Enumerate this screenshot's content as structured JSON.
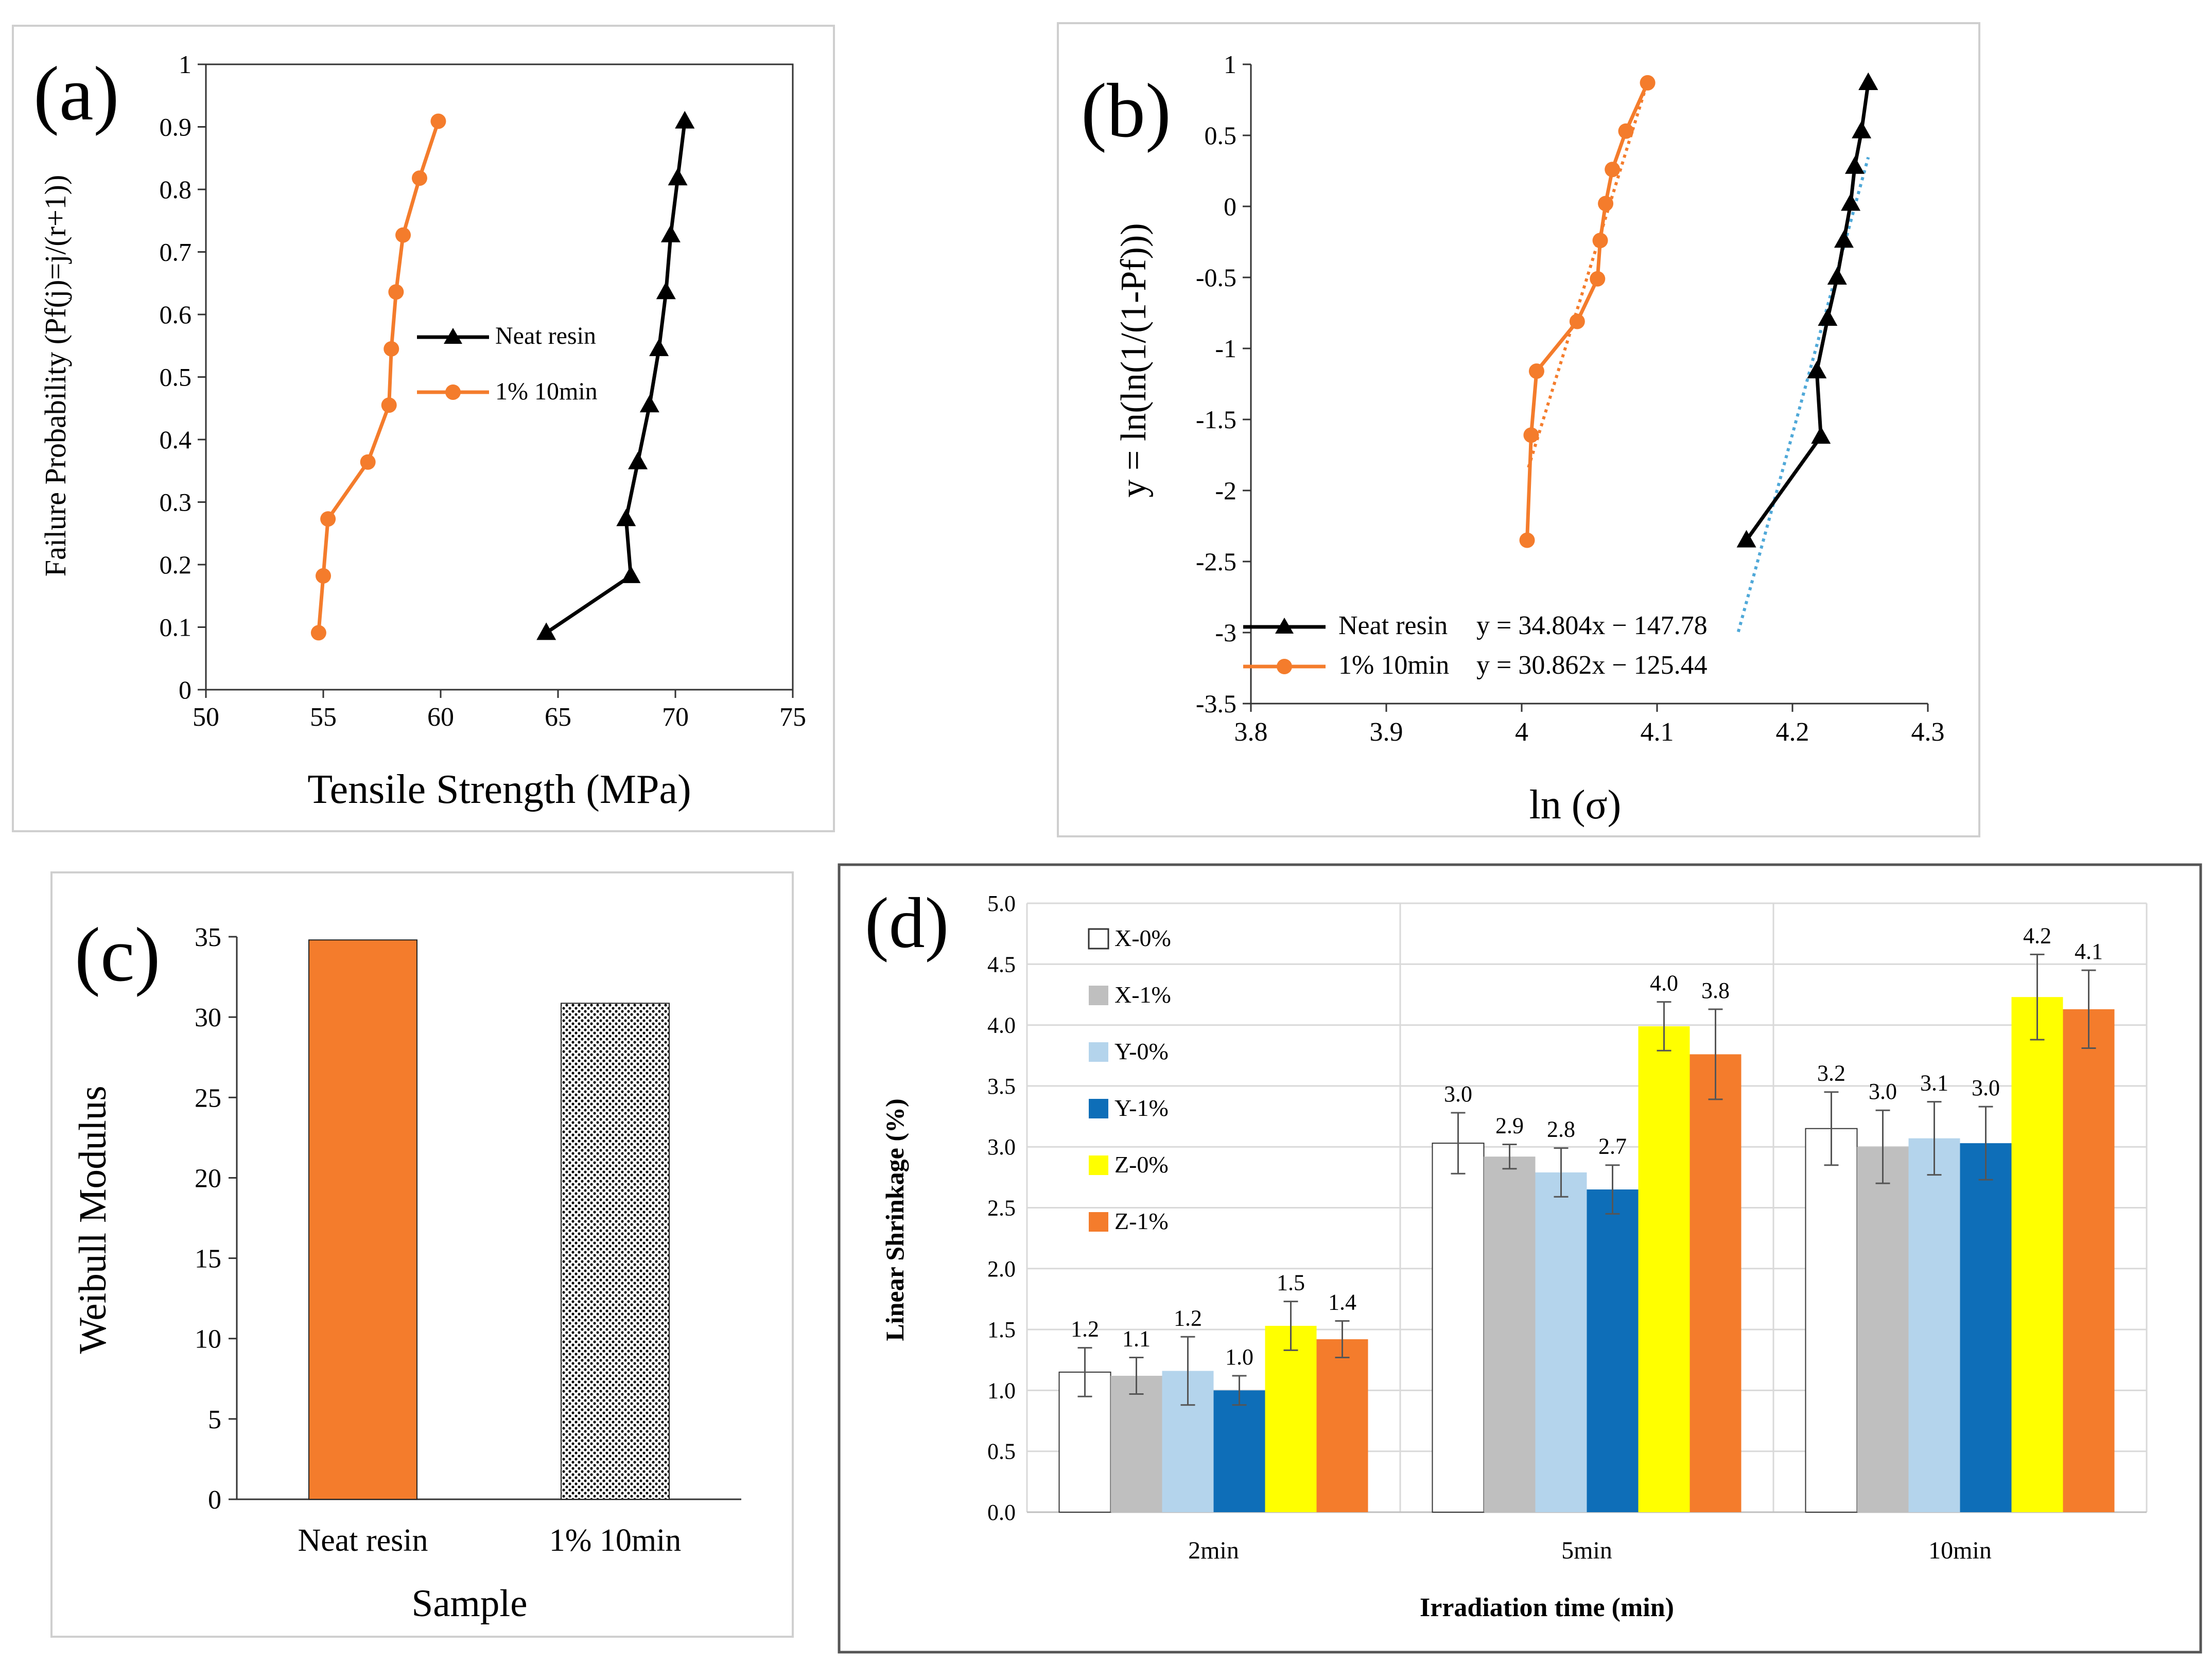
{
  "chart_data": [
    {
      "panel": "a",
      "panel_label": "(a)",
      "type": "line",
      "xlabel": "Tensile Strength (MPa)",
      "ylabel": "Failure  Probability   (Pf(j)=j/(r+1))",
      "xlim": [
        50,
        75
      ],
      "ylim": [
        0,
        1
      ],
      "xticks": [
        "50",
        "55",
        "60",
        "65",
        "70",
        "75"
      ],
      "yticks": [
        "0",
        "0.1",
        "0.2",
        "0.3",
        "0.4",
        "0.5",
        "0.6",
        "0.7",
        "0.8",
        "0.9",
        "1"
      ],
      "legend_position": "center",
      "series": [
        {
          "name": "Neat resin",
          "color": "#000000",
          "marker": "triangle",
          "x": [
            64.5,
            68.1,
            67.9,
            68.4,
            68.9,
            69.3,
            69.6,
            69.8,
            70.1,
            70.4,
            70.4
          ],
          "y": [
            0.091,
            0.182,
            0.273,
            0.364,
            0.455,
            0.545,
            0.636,
            0.727,
            0.818,
            0.909,
            0.909
          ]
        },
        {
          "name": "1% 10min",
          "color": "#F47C2C",
          "marker": "circle",
          "x": [
            54.8,
            55.0,
            55.2,
            56.9,
            57.8,
            57.9,
            58.1,
            58.4,
            59.1,
            59.9
          ],
          "y": [
            0.091,
            0.182,
            0.273,
            0.364,
            0.455,
            0.545,
            0.636,
            0.727,
            0.818,
            0.909
          ]
        }
      ]
    },
    {
      "panel": "b",
      "panel_label": "(b)",
      "type": "line",
      "xlabel": "ln (σ)",
      "ylabel": "y = ln(ln(1/(1-Pf)))",
      "xlim": [
        3.8,
        4.3
      ],
      "ylim": [
        -3.5,
        1
      ],
      "xticks": [
        "3.8",
        "3.9",
        "4",
        "4.1",
        "4.2",
        "4.3"
      ],
      "yticks": [
        "-3.5",
        "-3",
        "-2.5",
        "-2",
        "-1.5",
        "-1",
        "-0.5",
        "0",
        "0.5",
        "1"
      ],
      "legend_position": "bottom-left",
      "series": [
        {
          "name": "Neat resin",
          "color": "#000000",
          "marker": "triangle",
          "equation": "y = 34.804x   − 147.78",
          "x": [
            4.166,
            4.221,
            4.218,
            4.226,
            4.233,
            4.238,
            4.243,
            4.246,
            4.251,
            4.256,
            4.256
          ],
          "y": [
            -2.35,
            -1.62,
            -1.16,
            -0.79,
            -0.5,
            -0.24,
            0.02,
            0.28,
            0.53,
            0.87,
            0.87
          ]
        },
        {
          "name": "1% 10min",
          "color": "#F47C2C",
          "marker": "circle",
          "equation": "y = 30.862x   − 125.44",
          "x": [
            4.004,
            4.007,
            4.011,
            4.041,
            4.056,
            4.058,
            4.062,
            4.067,
            4.077,
            4.093
          ],
          "y": [
            -2.35,
            -1.61,
            -1.16,
            -0.81,
            -0.51,
            -0.24,
            0.02,
            0.26,
            0.53,
            0.87
          ]
        }
      ],
      "trendlines": [
        {
          "series": "Neat resin",
          "color": "#4FA8D8",
          "slope": 34.804,
          "intercept": -147.78,
          "x_range": [
            4.16,
            4.256
          ]
        },
        {
          "series": "1% 10min",
          "color": "#F47C2C",
          "slope": 30.862,
          "intercept": -125.44,
          "x_range": [
            4.005,
            4.093
          ]
        }
      ]
    },
    {
      "panel": "c",
      "panel_label": "(c)",
      "type": "bar",
      "xlabel": "Sample",
      "ylabel": "Weibull Modulus",
      "categories": [
        "Neat resin",
        "1% 10min"
      ],
      "values": [
        34.8,
        30.86
      ],
      "colors": [
        "#F47C2C",
        "dotted"
      ],
      "ylim": [
        0,
        35
      ],
      "yticks": [
        "0",
        "5",
        "10",
        "15",
        "20",
        "25",
        "30",
        "35"
      ]
    },
    {
      "panel": "d",
      "panel_label": "(d)",
      "type": "bar",
      "xlabel": "Irradiation  time (min)",
      "ylabel": "Linear Shrinkage (%)",
      "categories": [
        "2min",
        "5min",
        "10min"
      ],
      "ylim": [
        0,
        5
      ],
      "yticks": [
        "0.0",
        "0.5",
        "1.0",
        "1.5",
        "2.0",
        "2.5",
        "3.0",
        "3.5",
        "4.0",
        "4.5",
        "5.0"
      ],
      "legend_position": "top-left",
      "series": [
        {
          "name": "X-0%",
          "color": "#FFFFFF",
          "values": [
            1.15,
            3.03,
            3.15
          ],
          "errors": [
            0.2,
            0.25,
            0.3
          ],
          "labels": [
            "1.2",
            "3.0",
            "3.2"
          ]
        },
        {
          "name": "X-1%",
          "color": "#BFBFBF",
          "values": [
            1.12,
            2.92,
            3.0
          ],
          "errors": [
            0.15,
            0.1,
            0.3
          ],
          "labels": [
            "1.1",
            "2.9",
            "3.0"
          ]
        },
        {
          "name": "Y-0%",
          "color": "#B4D4EC",
          "values": [
            1.16,
            2.79,
            3.07
          ],
          "errors": [
            0.28,
            0.2,
            0.3
          ],
          "labels": [
            "1.2",
            "2.8",
            "3.1"
          ]
        },
        {
          "name": "Y-1%",
          "color": "#0E6EB8",
          "values": [
            1.0,
            2.65,
            3.03
          ],
          "errors": [
            0.12,
            0.2,
            0.3
          ],
          "labels": [
            "1.0",
            "2.7",
            "3.0"
          ]
        },
        {
          "name": "Z-0%",
          "color": "#FFFF00",
          "values": [
            1.53,
            3.99,
            4.23
          ],
          "errors": [
            0.2,
            0.2,
            0.35
          ],
          "labels": [
            "1.5",
            "4.0",
            "4.2"
          ]
        },
        {
          "name": "Z-1%",
          "color": "#F47C2C",
          "values": [
            1.42,
            3.76,
            4.13
          ],
          "errors": [
            0.15,
            0.37,
            0.32
          ],
          "labels": [
            "1.4",
            "3.8",
            "4.1"
          ]
        }
      ]
    }
  ]
}
